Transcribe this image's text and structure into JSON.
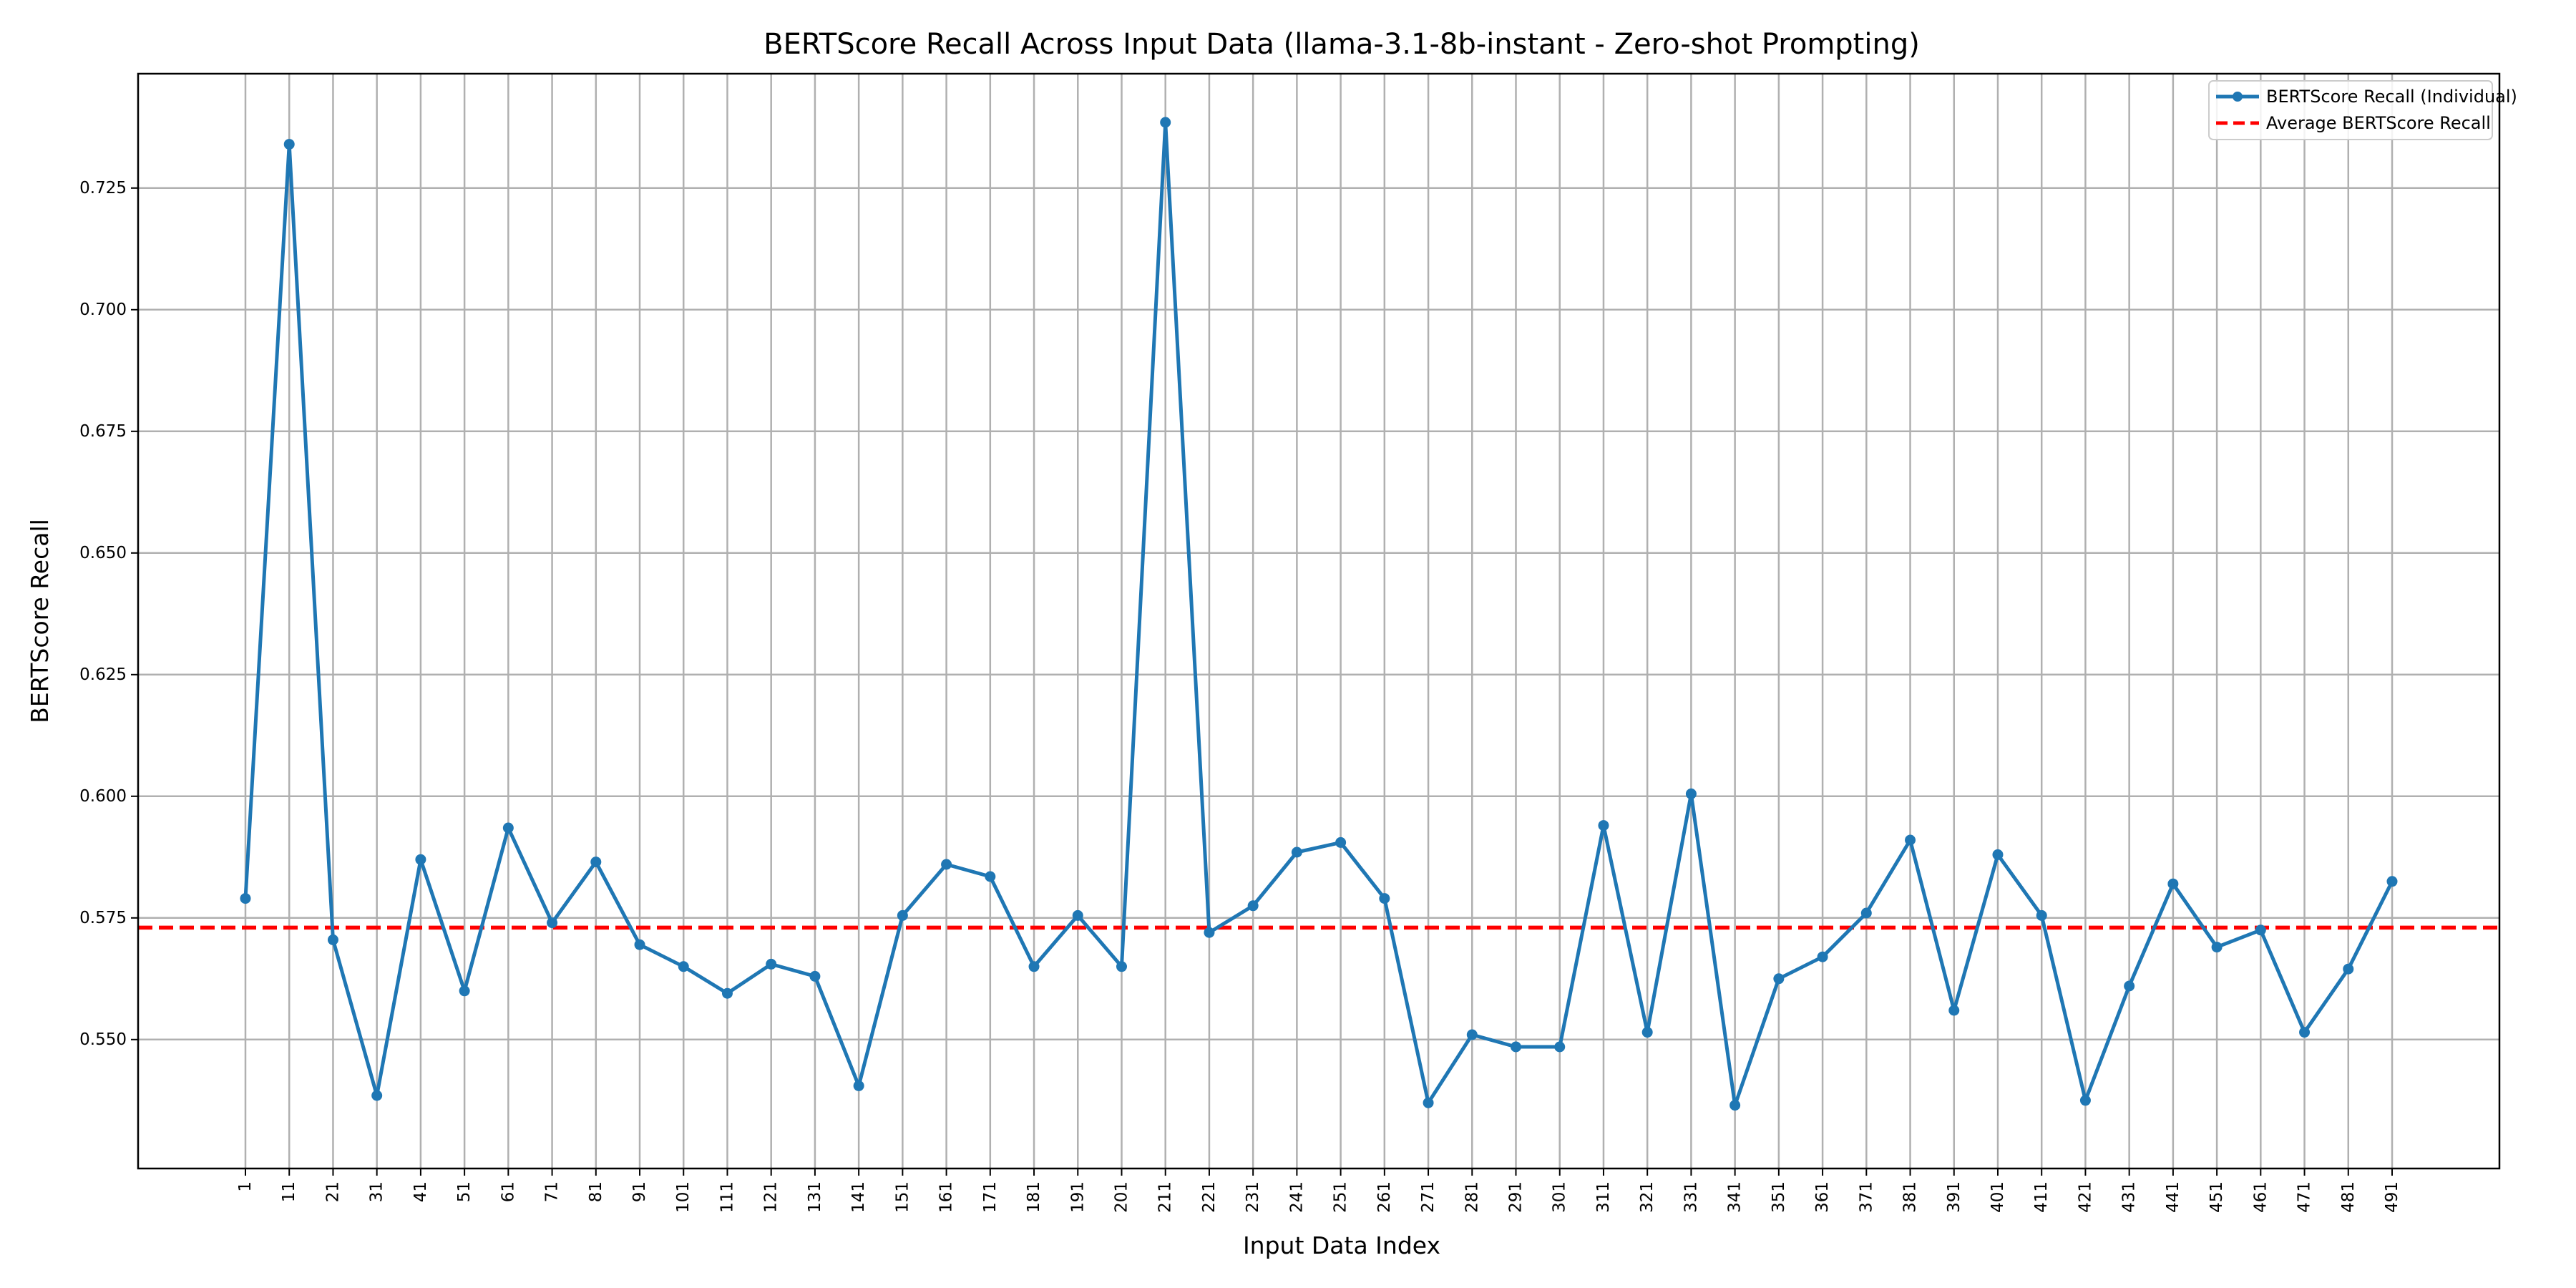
{
  "chart_data": {
    "type": "line",
    "title": "BERTScore Recall Across Input Data (llama-3.1-8b-instant - Zero-shot Prompting)",
    "xlabel": "Input Data Index",
    "ylabel": "BERTScore Recall",
    "x": [
      1,
      11,
      21,
      31,
      41,
      51,
      61,
      71,
      81,
      91,
      101,
      111,
      121,
      131,
      141,
      151,
      161,
      171,
      181,
      191,
      201,
      211,
      221,
      231,
      241,
      251,
      261,
      271,
      281,
      291,
      301,
      311,
      321,
      331,
      341,
      351,
      361,
      371,
      381,
      391,
      401,
      411,
      421,
      431,
      441,
      451,
      461,
      471,
      481,
      491
    ],
    "x_tick_labels": [
      "1",
      "11",
      "21",
      "31",
      "41",
      "51",
      "61",
      "71",
      "81",
      "91",
      "101",
      "111",
      "121",
      "131",
      "141",
      "151",
      "161",
      "171",
      "181",
      "191",
      "201",
      "211",
      "221",
      "231",
      "241",
      "251",
      "261",
      "271",
      "281",
      "291",
      "301",
      "311",
      "321",
      "331",
      "341",
      "351",
      "361",
      "371",
      "381",
      "391",
      "401",
      "411",
      "421",
      "431",
      "441",
      "451",
      "461",
      "471",
      "481",
      "491"
    ],
    "series": [
      {
        "name": "BERTScore Recall (Individual)",
        "color": "#1f77b4",
        "style": "solid-line-with-circle-markers",
        "values": [
          0.579,
          0.734,
          0.5705,
          0.5385,
          0.587,
          0.56,
          0.5935,
          0.574,
          0.5865,
          0.5695,
          0.565,
          0.5595,
          0.5655,
          0.563,
          0.5405,
          0.5755,
          0.586,
          0.5835,
          0.565,
          0.5755,
          0.565,
          0.7385,
          0.572,
          0.5775,
          0.5885,
          0.5905,
          0.579,
          0.537,
          0.551,
          0.5485,
          0.5485,
          0.594,
          0.5515,
          0.6005,
          0.5365,
          0.5625,
          0.567,
          0.576,
          0.591,
          0.556,
          0.588,
          0.5755,
          0.5375,
          0.561,
          0.582,
          0.569,
          0.5725,
          0.5515,
          0.5645,
          0.5825
        ]
      }
    ],
    "reference_lines": [
      {
        "name": "Average BERTScore Recall",
        "value": 0.573,
        "color": "#ff0000",
        "style": "dashed"
      }
    ],
    "y_ticks": [
      0.55,
      0.575,
      0.6,
      0.625,
      0.65,
      0.675,
      0.7,
      0.725
    ],
    "y_tick_labels": [
      "0.550",
      "0.575",
      "0.600",
      "0.625",
      "0.650",
      "0.675",
      "0.700",
      "0.725"
    ],
    "ylim": [
      0.5235,
      0.7485
    ],
    "xlim": [
      -23.5,
      515.5
    ],
    "grid": true,
    "legend_position": "top-right"
  }
}
